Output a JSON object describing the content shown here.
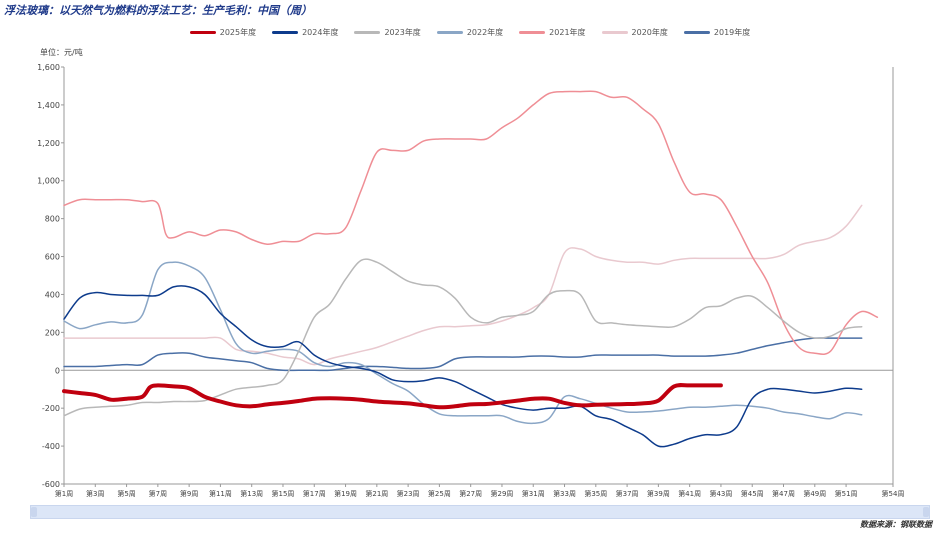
{
  "title": "浮法玻璃：以天然气为燃料的浮法工艺：生产毛利：中国（周）",
  "unit": "单位：元/吨",
  "source": "数据来源：钢联数据",
  "chart_data": {
    "type": "line",
    "title": "浮法玻璃：以天然气为燃料的浮法工艺：生产毛利：中国（周）",
    "ylabel": "单位：元/吨",
    "ylim": [
      -600,
      1600
    ],
    "yticks": [
      -600,
      -400,
      -200,
      0,
      200,
      400,
      600,
      800,
      1000,
      1200,
      1400,
      1600
    ],
    "ytick_labels": [
      "-600",
      "-400",
      "-200",
      "0",
      "200",
      "400",
      "600",
      "800",
      "1,000",
      "1,200",
      "1,400",
      "1,600"
    ],
    "xlim": [
      1,
      54
    ],
    "xticks": [
      1,
      3,
      5,
      7,
      9,
      11,
      13,
      15,
      17,
      19,
      21,
      23,
      25,
      27,
      29,
      31,
      33,
      35,
      37,
      39,
      41,
      43,
      45,
      47,
      49,
      51,
      54
    ],
    "xtick_labels": [
      "第1周",
      "第3周",
      "第5周",
      "第7周",
      "第9周",
      "第11周",
      "第13周",
      "第15周",
      "第17周",
      "第19周",
      "第21周",
      "第23周",
      "第25周",
      "第27周",
      "第29周",
      "第31周",
      "第33周",
      "第35周",
      "第37周",
      "第39周",
      "第41周",
      "第43周",
      "第45周",
      "第47周",
      "第49周",
      "第51周",
      "第54周"
    ],
    "legend_position": "top-center",
    "grid": false,
    "series": [
      {
        "name": "2025年度",
        "color": "#c0000f",
        "width": 4,
        "x": [
          1,
          2,
          3,
          4,
          5,
          6,
          6.5,
          7,
          8,
          9,
          10,
          11,
          12,
          13,
          14,
          15,
          16,
          17,
          18,
          19,
          20,
          21,
          22,
          23,
          24,
          25,
          26,
          27,
          28,
          29,
          30,
          31,
          32,
          33,
          34,
          35,
          36,
          37,
          38,
          39,
          40,
          41,
          42,
          43
        ],
        "y": [
          -110,
          -120,
          -130,
          -155,
          -150,
          -140,
          -90,
          -80,
          -85,
          -95,
          -140,
          -165,
          -185,
          -190,
          -180,
          -172,
          -162,
          -150,
          -148,
          -150,
          -155,
          -165,
          -170,
          -175,
          -185,
          -195,
          -190,
          -180,
          -178,
          -170,
          -160,
          -150,
          -150,
          -172,
          -185,
          -182,
          -180,
          -178,
          -175,
          -160,
          -85,
          -80,
          -80,
          -80
        ]
      },
      {
        "name": "2024年度",
        "color": "#0d3b8c",
        "width": 1.5,
        "x": [
          1,
          2,
          3,
          4,
          5,
          6,
          7,
          8,
          9,
          10,
          11,
          12,
          13,
          14,
          15,
          16,
          17,
          18,
          19,
          20,
          21,
          22,
          23,
          24,
          25,
          26,
          27,
          28,
          29,
          30,
          31,
          32,
          33,
          34,
          35,
          36,
          37,
          38,
          39,
          40,
          41,
          42,
          43,
          44,
          45,
          46,
          47,
          48,
          49,
          50,
          51,
          52
        ],
        "y": [
          270,
          380,
          410,
          400,
          395,
          395,
          395,
          440,
          440,
          400,
          300,
          230,
          160,
          125,
          125,
          150,
          80,
          40,
          20,
          10,
          -10,
          -50,
          -60,
          -55,
          -40,
          -60,
          -100,
          -140,
          -180,
          -200,
          -210,
          -200,
          -200,
          -190,
          -240,
          -260,
          -300,
          -340,
          -400,
          -390,
          -360,
          -340,
          -340,
          -300,
          -150,
          -100,
          -100,
          -110,
          -120,
          -110,
          -95,
          -100
        ]
      },
      {
        "name": "2023年度",
        "color": "#b8b8b8",
        "width": 1.5,
        "x": [
          1,
          2,
          3,
          4,
          5,
          6,
          7,
          8,
          9,
          10,
          11,
          12,
          13,
          14,
          15,
          16,
          17,
          18,
          19,
          20,
          21,
          22,
          23,
          24,
          25,
          26,
          27,
          28,
          29,
          30,
          31,
          32,
          33,
          34,
          35,
          36,
          37,
          38,
          39,
          40,
          41,
          42,
          43,
          44,
          45,
          46,
          47,
          48,
          49,
          50,
          51,
          52
        ],
        "y": [
          -240,
          -205,
          -195,
          -190,
          -185,
          -170,
          -170,
          -165,
          -165,
          -160,
          -130,
          -100,
          -90,
          -80,
          -50,
          100,
          280,
          350,
          480,
          580,
          570,
          520,
          470,
          450,
          440,
          380,
          280,
          250,
          280,
          290,
          310,
          400,
          420,
          400,
          260,
          250,
          240,
          235,
          230,
          230,
          270,
          330,
          340,
          380,
          390,
          330,
          260,
          200,
          170,
          180,
          220,
          230
        ]
      },
      {
        "name": "2022年度",
        "color": "#8aa6c6",
        "width": 1.5,
        "x": [
          1,
          2,
          3,
          4,
          5,
          6,
          7,
          8,
          9,
          10,
          11,
          12,
          13,
          14,
          15,
          16,
          17,
          18,
          19,
          20,
          21,
          22,
          23,
          24,
          25,
          26,
          27,
          28,
          29,
          30,
          31,
          32,
          33,
          34,
          35,
          36,
          37,
          38,
          39,
          40,
          41,
          42,
          43,
          44,
          45,
          46,
          47,
          48,
          49,
          50,
          51,
          52
        ],
        "y": [
          260,
          220,
          240,
          255,
          250,
          290,
          530,
          570,
          550,
          490,
          320,
          140,
          90,
          100,
          110,
          100,
          40,
          20,
          40,
          30,
          -20,
          -70,
          -110,
          -180,
          -230,
          -240,
          -240,
          -240,
          -240,
          -270,
          -280,
          -255,
          -140,
          -150,
          -175,
          -200,
          -220,
          -220,
          -215,
          -205,
          -195,
          -195,
          -190,
          -185,
          -190,
          -200,
          -220,
          -230,
          -245,
          -255,
          -225,
          -235
        ]
      },
      {
        "name": "2021年度",
        "color": "#ef8e95",
        "width": 1.5,
        "x": [
          1,
          2,
          3,
          4,
          5,
          6,
          7,
          7.5,
          8,
          9,
          10,
          11,
          12,
          13,
          14,
          15,
          16,
          17,
          18,
          19,
          20,
          21,
          22,
          23,
          24,
          25,
          26,
          27,
          28,
          29,
          30,
          31,
          32,
          33,
          34,
          35,
          36,
          37,
          38,
          39,
          40,
          41,
          42,
          43,
          44,
          45,
          46,
          47,
          48,
          49,
          50,
          51,
          52,
          53
        ],
        "y": [
          870,
          900,
          900,
          900,
          900,
          890,
          880,
          720,
          700,
          730,
          710,
          740,
          730,
          690,
          665,
          680,
          680,
          720,
          720,
          750,
          950,
          1150,
          1160,
          1160,
          1210,
          1220,
          1220,
          1220,
          1220,
          1280,
          1330,
          1400,
          1460,
          1470,
          1470,
          1470,
          1440,
          1440,
          1380,
          1300,
          1100,
          940,
          930,
          900,
          760,
          600,
          460,
          250,
          120,
          90,
          100,
          240,
          310,
          280
        ]
      },
      {
        "name": "2020年度",
        "color": "#e9c9cf",
        "width": 1.5,
        "x": [
          1,
          2,
          3,
          4,
          5,
          6,
          7,
          8,
          9,
          10,
          11,
          12,
          13,
          14,
          15,
          16,
          17,
          18,
          19,
          20,
          21,
          22,
          23,
          24,
          25,
          26,
          27,
          28,
          29,
          30,
          31,
          32,
          33,
          34,
          35,
          36,
          37,
          38,
          39,
          40,
          41,
          42,
          43,
          44,
          45,
          46,
          47,
          48,
          49,
          50,
          51,
          52
        ],
        "y": [
          170,
          170,
          170,
          170,
          170,
          170,
          170,
          170,
          170,
          170,
          170,
          110,
          100,
          90,
          70,
          60,
          30,
          60,
          80,
          100,
          120,
          150,
          180,
          210,
          230,
          230,
          235,
          240,
          260,
          290,
          330,
          400,
          620,
          640,
          600,
          580,
          570,
          570,
          560,
          580,
          590,
          590,
          590,
          590,
          590,
          590,
          610,
          660,
          680,
          700,
          760,
          870
        ]
      },
      {
        "name": "2019年度",
        "color": "#4a6fa5",
        "width": 1.5,
        "x": [
          1,
          2,
          3,
          4,
          5,
          6,
          7,
          8,
          9,
          10,
          11,
          12,
          13,
          14,
          15,
          16,
          17,
          18,
          19,
          20,
          21,
          22,
          23,
          24,
          25,
          26,
          27,
          28,
          29,
          30,
          31,
          32,
          33,
          34,
          35,
          36,
          37,
          38,
          39,
          40,
          41,
          42,
          43,
          44,
          45,
          46,
          47,
          48,
          49,
          50,
          51,
          52
        ],
        "y": [
          20,
          20,
          20,
          25,
          30,
          30,
          80,
          90,
          90,
          70,
          60,
          50,
          40,
          10,
          0,
          0,
          0,
          0,
          10,
          20,
          20,
          15,
          10,
          10,
          20,
          60,
          70,
          70,
          70,
          70,
          75,
          75,
          70,
          70,
          80,
          80,
          80,
          80,
          80,
          75,
          75,
          75,
          80,
          90,
          110,
          130,
          145,
          160,
          170,
          170,
          170,
          170
        ]
      }
    ]
  }
}
